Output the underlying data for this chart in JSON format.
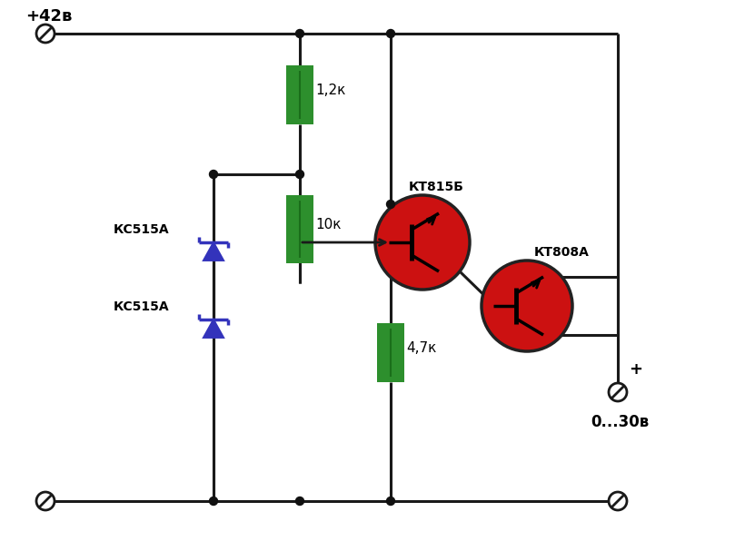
{
  "bg_color": "#ffffff",
  "line_color": "#1a1a1a",
  "line_width": 2.2,
  "resistor_color": "#2d8f2d",
  "transistor_bg_color": "#cc1111",
  "zener_color": "#3333bb",
  "dot_color": "#111111",
  "labels": {
    "supply": "+42в",
    "output_label": "0...30в",
    "output_plus": "+",
    "r1": "1,2к",
    "r2": "10к",
    "r3": "4,7к",
    "t1": "КТ815Б",
    "t2": "КТ808А",
    "z1": "КС515А",
    "z2": "КС515А"
  }
}
